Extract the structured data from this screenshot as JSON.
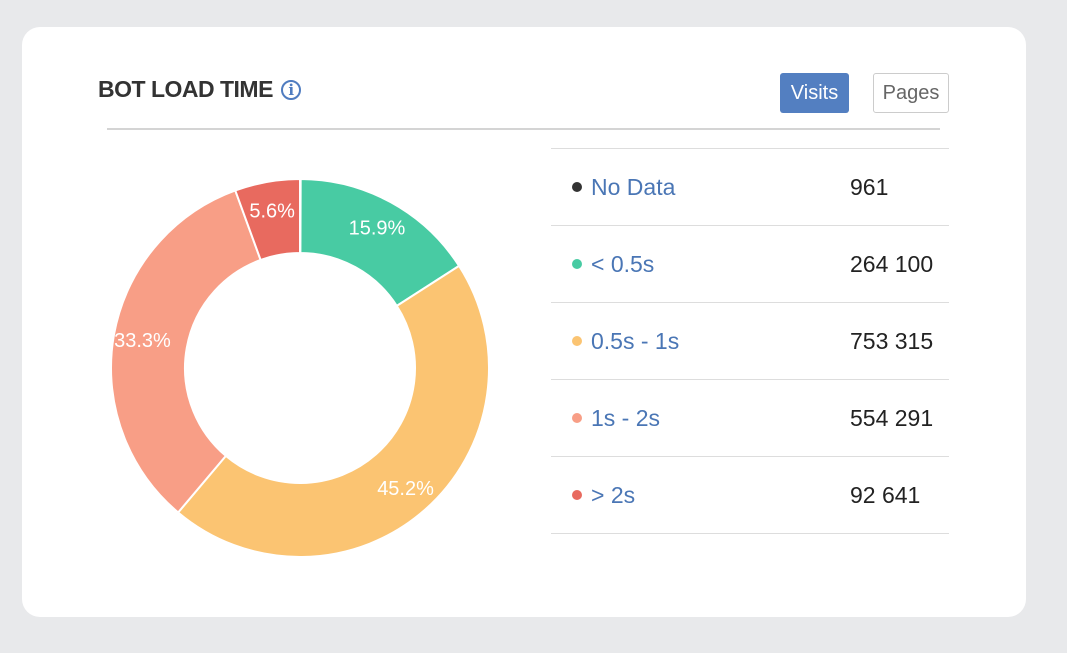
{
  "header": {
    "title": "BOT LOAD TIME",
    "info_icon": "info-icon",
    "visits_label": "Visits",
    "pages_label": "Pages"
  },
  "chart_data": {
    "type": "pie",
    "donut": true,
    "title": "BOT LOAD TIME",
    "categories": [
      "No Data",
      "< 0.5s",
      "0.5s - 1s",
      "1s - 2s",
      "> 2s"
    ],
    "values": [
      961,
      264100,
      753315,
      554291,
      92641
    ],
    "display_values": [
      "961",
      "264 100",
      "753 315",
      "554 291",
      "92 641"
    ],
    "percent_labels": [
      "",
      "15.9%",
      "45.2%",
      "33.3%",
      "5.6%"
    ],
    "colors": [
      "#333333",
      "#48cba3",
      "#fbc472",
      "#f89e86",
      "#e86a5f"
    ]
  }
}
